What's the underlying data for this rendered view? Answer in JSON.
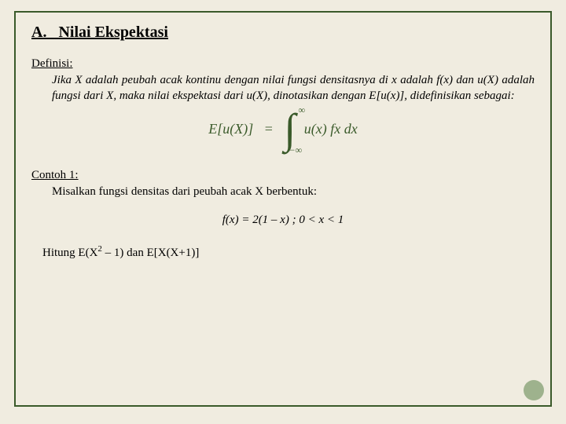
{
  "section": {
    "letter": "A.",
    "title": "Nilai Ekspektasi"
  },
  "definition": {
    "label": "Definisi:",
    "body": "Jika X adalah peubah acak kontinu dengan nilai fungsi densitasnya di x adalah f(x) dan u(X) adalah fungsi dari X, maka nilai ekspektasi dari u(X), dinotasikan dengan E[u(x)], didefinisikan sebagai:"
  },
  "formula": {
    "lhs": "E[u(X)]",
    "eq": "=",
    "upper": "∞",
    "lower": "−∞",
    "integrand": "u(x) fx dx",
    "color": "#3a5a2a"
  },
  "example": {
    "label": "Contoh 1:",
    "body": "Misalkan fungsi densitas dari peubah acak X berbentuk:",
    "fx": "f(x) = 2(1 – x) ;  0 < x < 1",
    "compute_prefix": "Hitung E(X",
    "compute_mid1": " – 1) dan E[X(X+1)]"
  },
  "colors": {
    "background": "#f0ece0",
    "border": "#3a5a2a",
    "dot": "#7a9a6a"
  }
}
